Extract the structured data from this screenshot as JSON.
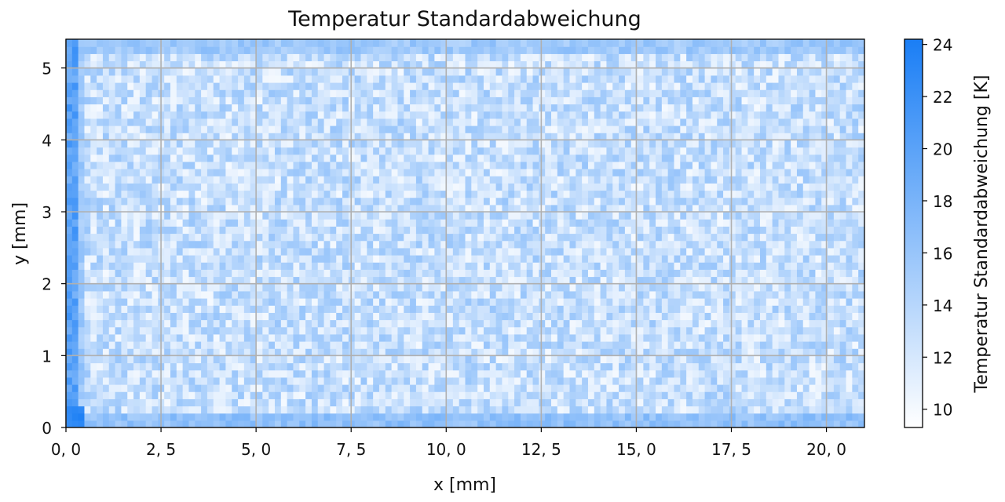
{
  "chart_data": {
    "type": "heatmap",
    "title": "Temperatur Standardabweichung",
    "xlabel": "x [mm]",
    "ylabel": "y [mm]",
    "xlim": [
      0,
      21
    ],
    "ylim": [
      0,
      5.4
    ],
    "x_ticks": [
      0,
      2.5,
      5,
      7.5,
      10,
      12.5,
      15,
      17.5,
      20
    ],
    "x_tick_labels": [
      "0, 0",
      "2, 5",
      "5, 0",
      "7, 5",
      "10, 0",
      "12, 5",
      "15, 0",
      "17, 5",
      "20, 0"
    ],
    "y_ticks": [
      0,
      1,
      2,
      3,
      4,
      5
    ],
    "y_tick_labels": [
      "0",
      "1",
      "2",
      "3",
      "4",
      "5"
    ],
    "grid": true,
    "colormap": {
      "low_color": "#ffffff",
      "high_color": "#1a7ef5"
    },
    "colorbar": {
      "label": "Temperatur Standardabweichung [K]",
      "range": [
        9.3,
        24.2
      ],
      "ticks": [
        10,
        12,
        14,
        16,
        18,
        20,
        22,
        24
      ],
      "tick_labels": [
        "10",
        "12",
        "14",
        "16",
        "18",
        "20",
        "22",
        "24"
      ]
    },
    "field_summary": {
      "interior_typical_K": 13,
      "interior_range_K": [
        9.5,
        17
      ],
      "left_edge_K": 18,
      "left_edge_peak_K": 23,
      "bottom_edge_K": 16.5,
      "bottom_left_corner_K": 24,
      "top_edge_K": 15.5
    }
  }
}
